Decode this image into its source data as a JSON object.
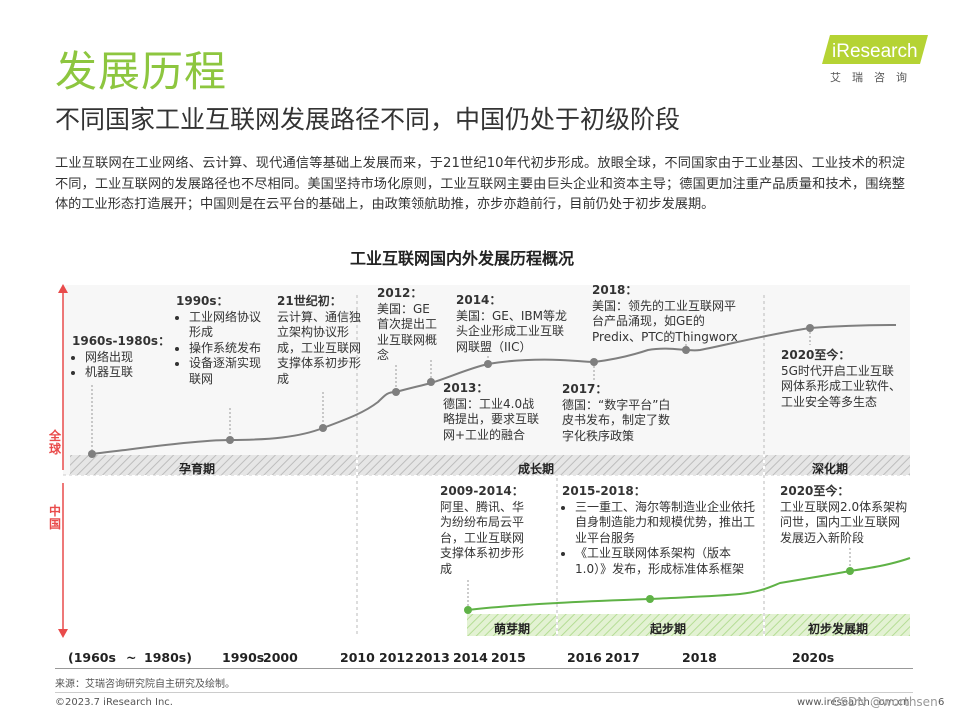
{
  "page": {
    "title": "发展历程",
    "subtitle": "不同国家工业互联网发展路径不同，中国仍处于初级阶段",
    "logo": {
      "brand": "iResearch",
      "sub": "艾瑞咨询"
    },
    "intro": "工业互联网在工业网络、云计算、现代通信等基础上发展而来，于21世纪10年代初步形成。放眼全球，不同国家由于工业基因、工业技术的积淀不同，工业互联网的发展路径也不尽相同。美国坚持市场化原则，工业互联网主要由巨头企业和资本主导；德国更加注重产品质量和技术，围绕整体的工业形态打造展开；中国则是在云平台的基础上，由政策领航助推，亦步亦趋前行，目前仍处于初步发展期。",
    "source": "来源：艾瑞咨询研究院自主研究及绘制。",
    "footer_left": "©2023.7 iResearch Inc.",
    "footer_right": "www.iresearch.com.cn",
    "watermark": "CSDN @worthsen",
    "page_number": "6"
  },
  "chart_data": {
    "type": "timeline",
    "title": "工业互联网国内外发展历程概况",
    "global_label": "全球",
    "china_label": "中国",
    "global_phases": [
      "孕育期",
      "成长期",
      "深化期"
    ],
    "china_phases": [
      "萌芽期",
      "起步期",
      "初步发展期"
    ],
    "x_ticks": [
      "(1960s",
      "~",
      "1980s)",
      "1990s",
      "2000",
      "2010",
      "2012",
      "2013",
      "2014",
      "2015",
      "2016",
      "2017",
      "2018",
      "2020s"
    ],
    "global_events": [
      {
        "period": "1960s-1980s：",
        "items": [
          "网络出现",
          "机器互联"
        ]
      },
      {
        "period": "1990s：",
        "items": [
          "工业网络协议形成",
          "操作系统发布",
          "设备逐渐实现联网"
        ]
      },
      {
        "period": "21世纪初：",
        "text": "云计算、通信独立架构协议形成，工业互联网支撑体系初步形成"
      },
      {
        "period": "2012：",
        "text": "美国：GE首次提出工业互联网概念"
      },
      {
        "period": "2013：",
        "text": "德国：工业4.0战略提出，要求互联网+工业的融合"
      },
      {
        "period": "2014：",
        "text": "美国：GE、IBM等龙头企业形成工业互联网联盟（IIC）"
      },
      {
        "period": "2017：",
        "text": "德国：“数字平台”白皮书发布，制定了数字化秩序政策"
      },
      {
        "period": "2018：",
        "text": "美国：领先的工业互联网平台产品涌现，如GE的Predix、PTC的Thingworx"
      },
      {
        "period": "2020至今：",
        "text": "5G时代开启工业互联网体系形成工业软件、工业安全等多生态"
      }
    ],
    "china_events": [
      {
        "period": "2009-2014：",
        "text": "阿里、腾讯、华为纷纷布局云平台，工业互联网支撑体系初步形成"
      },
      {
        "period": "2015-2018：",
        "items": [
          "三一重工、海尔等制造业企业依托自身制造能力和规模优势，推出工业平台服务",
          "《工业互联网体系架构（版本1.0）》发布，形成标准体系框架"
        ]
      },
      {
        "period": "2020至今：",
        "text": "工业互联网2.0体系架构问世，国内工业互联网发展迈入新阶段"
      }
    ]
  },
  "colors": {
    "title_green": "#8dc63f",
    "global_line": "#7f7f7f",
    "china_line": "#5fb246",
    "arrow_red": "#e94b4b",
    "phase_gray": "#d9d9d9",
    "phase_green": "#dcefc9"
  }
}
